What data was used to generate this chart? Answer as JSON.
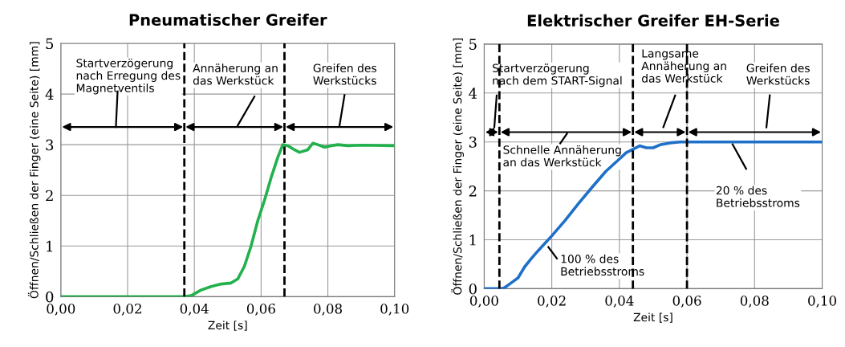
{
  "chart_data": [
    {
      "type": "line",
      "title": "Pneumatischer Greifer",
      "xlabel": "Zeit [s]",
      "ylabel": "Öffnen/Schließen der Finger (eine Seite) [mm]",
      "x": [
        0,
        0.037,
        0.039,
        0.042,
        0.045,
        0.048,
        0.051,
        0.053,
        0.055,
        0.057,
        0.059,
        0.061,
        0.063,
        0.065,
        0.0665,
        0.068,
        0.07,
        0.0715,
        0.073,
        0.074,
        0.0755,
        0.077,
        0.079,
        0.081,
        0.083,
        0.086,
        0.09,
        0.1
      ],
      "series": [
        {
          "color": "#22b14c",
          "values": [
            0,
            0,
            0.02,
            0.13,
            0.2,
            0.25,
            0.27,
            0.35,
            0.6,
            1.0,
            1.5,
            1.9,
            2.35,
            2.75,
            3.0,
            2.98,
            2.9,
            2.85,
            2.88,
            2.9,
            3.03,
            3.0,
            2.95,
            2.98,
            3.0,
            2.98,
            2.99,
            2.98
          ]
        }
      ],
      "xlim": [
        0,
        0.1
      ],
      "ylim": [
        0,
        5
      ],
      "xticks": [
        {
          "value": 0,
          "label": "0,00"
        },
        {
          "value": 0.02,
          "label": "0,02"
        },
        {
          "value": 0.04,
          "label": "0,04"
        },
        {
          "value": 0.06,
          "label": "0,06"
        },
        {
          "value": 0.08,
          "label": "0,08"
        },
        {
          "value": 0.1,
          "label": "0,10"
        }
      ],
      "yticks": [
        0,
        1,
        2,
        3,
        4,
        5
      ],
      "grid": true,
      "marker": "none",
      "line_style": "solid",
      "ref_lines": [
        {
          "axis": "x",
          "value": 0.037,
          "color": "#000000",
          "line_style": "dashed"
        },
        {
          "axis": "x",
          "value": 0.067,
          "color": "#000000",
          "line_style": "dashed"
        }
      ],
      "annotations": [
        "Startverzögerung\nnach Erregung des\nMagnetventils",
        "Annäherung an\ndas Werkstück",
        "Greifen des\nWerkstücks"
      ]
    },
    {
      "type": "line",
      "title": "Elektrischer Greifer EH-Serie",
      "xlabel": "Zeit [s]",
      "ylabel": "Öffnen/Schließen der Finger (eine Seite) [mm]",
      "x": [
        0,
        0.005,
        0.006,
        0.008,
        0.01,
        0.012,
        0.014,
        0.016,
        0.018,
        0.02,
        0.024,
        0.028,
        0.032,
        0.036,
        0.04,
        0.042,
        0.044,
        0.046,
        0.048,
        0.05,
        0.052,
        0.055,
        0.058,
        0.1
      ],
      "series": [
        {
          "color": "#1f70c8",
          "values": [
            0,
            0,
            0.02,
            0.12,
            0.22,
            0.45,
            0.62,
            0.78,
            0.93,
            1.08,
            1.4,
            1.75,
            2.08,
            2.4,
            2.65,
            2.78,
            2.85,
            2.92,
            2.88,
            2.88,
            2.94,
            2.98,
            3.0,
            3.0
          ]
        }
      ],
      "xlim": [
        0,
        0.1
      ],
      "ylim": [
        0,
        5
      ],
      "xticks": [
        {
          "value": 0,
          "label": "0,00"
        },
        {
          "value": 0.02,
          "label": "0,02"
        },
        {
          "value": 0.04,
          "label": "0,04"
        },
        {
          "value": 0.06,
          "label": "0,06"
        },
        {
          "value": 0.08,
          "label": "0,08"
        },
        {
          "value": 0.1,
          "label": "0,10"
        }
      ],
      "yticks": [
        0,
        1,
        2,
        3,
        4,
        5
      ],
      "grid": true,
      "marker": "none",
      "line_style": "solid",
      "ref_lines": [
        {
          "axis": "x",
          "value": 0.0045,
          "color": "#000000",
          "line_style": "dashed"
        },
        {
          "axis": "x",
          "value": 0.044,
          "color": "#000000",
          "line_style": "dashed"
        },
        {
          "axis": "x",
          "value": 0.06,
          "color": "#000000",
          "line_style": "dashed"
        }
      ],
      "annotations": [
        "Startverzögerung\nnach dem START-Signal",
        "Langsame\nAnnäherung an\ndas Werkstück",
        "Greifen des\nWerkstücks",
        "Schnelle Annäherung\nan das Werkstück",
        "20 % des\nBetriebsstroms",
        "100 % des\nBetriebsstroms"
      ]
    }
  ]
}
